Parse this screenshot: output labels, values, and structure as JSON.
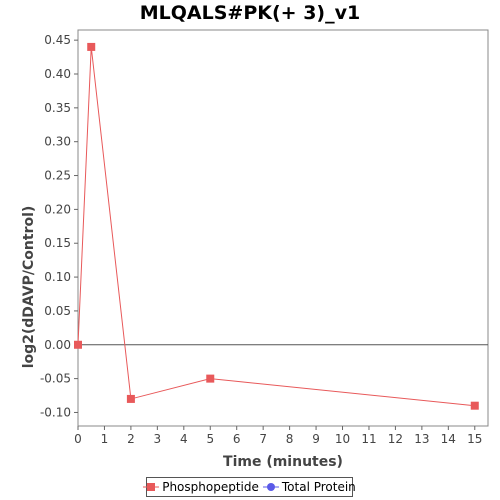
{
  "chart_data": {
    "type": "line",
    "title": "MLQALS#PK(+ 3)_v1",
    "xlabel": "Time (minutes)",
    "ylabel": "log2(dDAVP/Control)",
    "xlim": [
      0,
      15.5
    ],
    "ylim": [
      -0.12,
      0.465
    ],
    "x_ticks": [
      0,
      1,
      2,
      3,
      4,
      5,
      6,
      7,
      8,
      9,
      10,
      11,
      12,
      13,
      14,
      15
    ],
    "y_ticks": [
      -0.1,
      -0.05,
      0.0,
      0.05,
      0.1,
      0.15,
      0.2,
      0.25,
      0.3,
      0.35,
      0.4,
      0.45
    ],
    "y_tick_labels": [
      "-0.10",
      "-0.05",
      "0.00",
      "0.05",
      "0.10",
      "0.15",
      "0.20",
      "0.25",
      "0.30",
      "0.35",
      "0.40",
      "0.45"
    ],
    "grid": false,
    "zero_line": true,
    "legend_position": "bottom",
    "series": [
      {
        "name": "Phosphopeptide",
        "color": "#e8595a",
        "marker": "square",
        "x": [
          0,
          0.5,
          2,
          5,
          15
        ],
        "y": [
          0.0,
          0.44,
          -0.08,
          -0.05,
          -0.09
        ]
      },
      {
        "name": "Total Protein",
        "color": "#5a5ae8",
        "marker": "circle",
        "x": [],
        "y": []
      }
    ]
  }
}
